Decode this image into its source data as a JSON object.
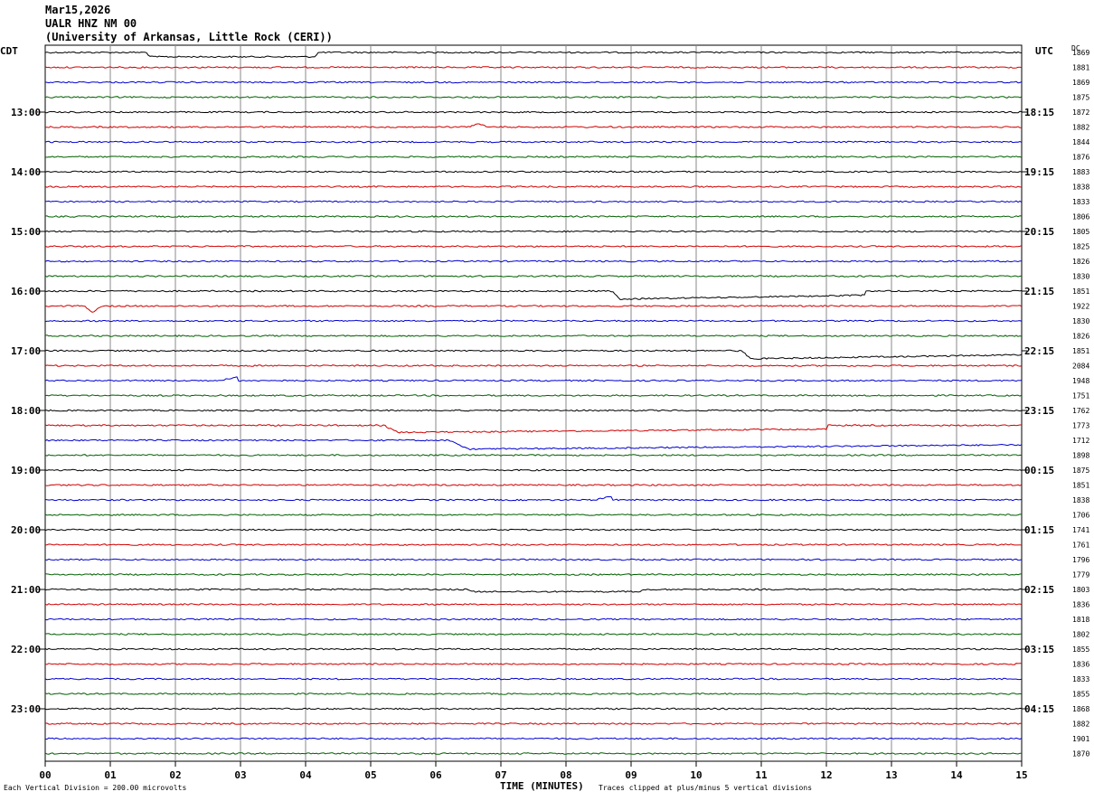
{
  "header": {
    "date": "Mar15,2026",
    "station": "UALR HNZ NM 00",
    "institution": "(University of Arkansas, Little Rock (CERI))"
  },
  "left_zone": "CDT",
  "right_zone": "UTC",
  "dc_header": "DC",
  "footer": {
    "scale_note": "Each Vertical Division =  200.00 microvolts",
    "clip_note": "Traces clipped at plus/minus 5 vertical divisions"
  },
  "colors": {
    "trace_cycle": [
      "#000000",
      "#d00000",
      "#0000d0",
      "#006000"
    ],
    "grid": "#888888"
  },
  "chart_data": {
    "type": "line",
    "title": "Mar15,2026 UALR HNZ NM 00",
    "xlabel": "TIME (MINUTES)",
    "x_ticks": [
      "00",
      "01",
      "02",
      "03",
      "04",
      "05",
      "06",
      "07",
      "08",
      "09",
      "10",
      "11",
      "12",
      "13",
      "14",
      "15"
    ],
    "xlim": [
      0,
      15
    ],
    "rows_per_hour": 4,
    "left_hour_labels": [
      "13:00",
      "14:00",
      "15:00",
      "16:00",
      "17:00",
      "18:00",
      "19:00",
      "20:00",
      "21:00",
      "22:00",
      "23:00"
    ],
    "right_hour_labels": [
      "18:15",
      "19:15",
      "20:15",
      "21:15",
      "22:15",
      "23:15",
      "00:15",
      "01:15",
      "02:15",
      "03:15",
      "04:15"
    ],
    "dc_offsets": [
      "1869",
      "1881",
      "1869",
      "1875",
      "1872",
      "1882",
      "1844",
      "1876",
      "1883",
      "1838",
      "1833",
      "1806",
      "1805",
      "1825",
      "1826",
      "1830",
      "1851",
      "1922",
      "1830",
      "1826",
      "1851",
      "2084",
      "1948",
      "1751",
      "1762",
      "1773",
      "1712",
      "1898",
      "1875",
      "1851",
      "1838",
      "1706",
      "1741",
      "1761",
      "1796",
      "1779",
      "1803",
      "1836",
      "1818",
      "1802",
      "1855",
      "1836",
      "1833",
      "1855",
      "1868",
      "1882",
      "1901",
      "1870"
    ],
    "events": [
      {
        "row": 0,
        "shape": "notch",
        "start": 1.55,
        "end": 4.2,
        "amp": 8
      },
      {
        "row": 5,
        "shape": "bump",
        "start": 6.5,
        "end": 6.8,
        "amp": -3
      },
      {
        "row": 16,
        "shape": "drop",
        "start": 8.7,
        "end": 12.6,
        "amp": 9
      },
      {
        "row": 17,
        "shape": "dip",
        "start": 0.6,
        "end": 0.85,
        "amp": 6
      },
      {
        "row": 20,
        "shape": "drop",
        "start": 10.7,
        "end": 15,
        "amp": 9
      },
      {
        "row": 22,
        "shape": "step",
        "start": 2.65,
        "end": 2.95,
        "amp": -4
      },
      {
        "row": 25,
        "shape": "drop",
        "start": 5.2,
        "end": 12.0,
        "amp": 8
      },
      {
        "row": 26,
        "shape": "drop",
        "start": 6.2,
        "end": 15,
        "amp": 10
      },
      {
        "row": 30,
        "shape": "step",
        "start": 8.45,
        "end": 8.7,
        "amp": -4
      },
      {
        "row": 36,
        "shape": "notch",
        "start": 6.5,
        "end": 9.2,
        "amp": 4
      }
    ]
  }
}
